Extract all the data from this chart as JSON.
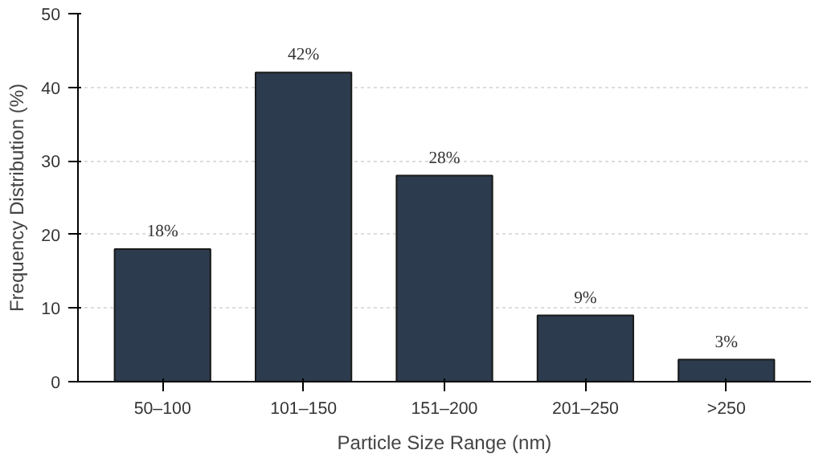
{
  "chart_data": {
    "type": "bar",
    "xlabel": "Particle Size Range (nm)",
    "ylabel": "Frequency Distribution (%)",
    "categories": [
      "50–100",
      "101–150",
      "151–200",
      "201–250",
      ">250"
    ],
    "values": [
      18,
      42,
      28,
      9,
      3
    ],
    "value_labels": [
      "18%",
      "42%",
      "28%",
      "9%",
      "3%"
    ],
    "color": "#2c3b4d",
    "ylim": [
      0,
      50
    ],
    "yticks": [
      0,
      10,
      20,
      30,
      40,
      50
    ],
    "grid": "y"
  }
}
